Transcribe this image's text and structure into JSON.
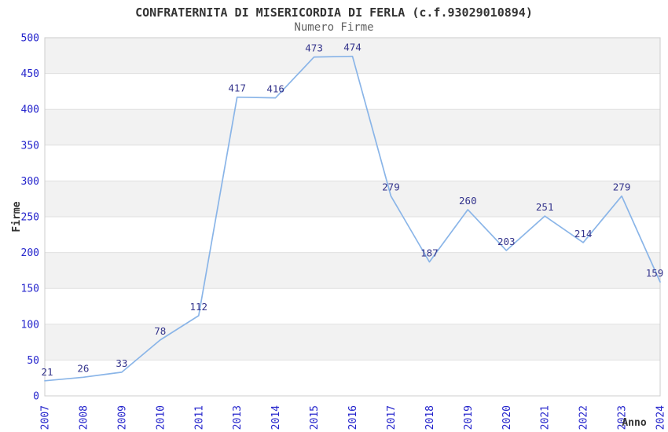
{
  "header": {
    "title": "CONFRATERNITA DI MISERICORDIA DI FERLA (c.f.93029010894)",
    "subtitle": "Numero Firme"
  },
  "chart_data": {
    "type": "line",
    "categories": [
      "2007",
      "2008",
      "2009",
      "2010",
      "2011",
      "2013",
      "2014",
      "2015",
      "2016",
      "2017",
      "2018",
      "2019",
      "2020",
      "2021",
      "2022",
      "2023",
      "2024"
    ],
    "values": [
      21,
      26,
      33,
      78,
      112,
      417,
      416,
      473,
      474,
      279,
      187,
      260,
      203,
      251,
      214,
      279,
      159
    ],
    "title": "CONFRATERNITA DI MISERICORDIA DI FERLA (c.f.93029010894)",
    "subtitle": "Numero Firme",
    "xlabel": "Anno",
    "ylabel": "Firme",
    "ylim": [
      0,
      500
    ],
    "ytick_step": 50,
    "yticks": [
      0,
      50,
      100,
      150,
      200,
      250,
      300,
      350,
      400,
      450,
      500
    ],
    "grid": true,
    "alternating_bands": true,
    "legend_position": "none",
    "data_labels_visible": true
  },
  "colors": {
    "line": "#8ab5e8",
    "tick_label": "#2424cc",
    "data_label": "#34348c",
    "band_gray": "#f2f2f2",
    "band_white": "#ffffff",
    "gridline": "#e0e0e0",
    "plot_border": "#cccccc",
    "title": "#333333",
    "subtitle": "#606060",
    "axis_title": "#333333",
    "background": "#ffffff"
  }
}
